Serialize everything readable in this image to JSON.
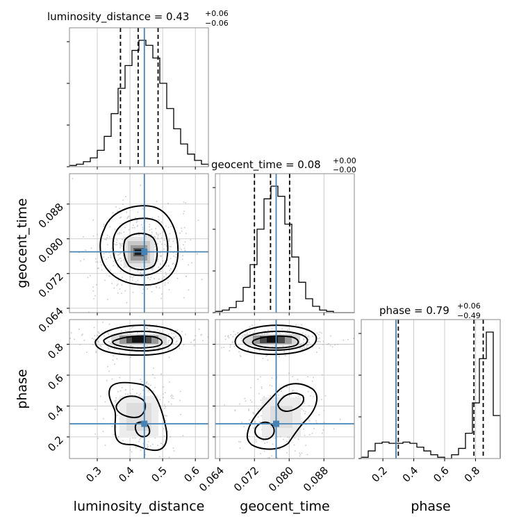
{
  "chart_data": {
    "type": "corner",
    "parameters": [
      "luminosity_distance",
      "geocent_time",
      "phase"
    ],
    "truths": {
      "luminosity_distance": 0.444,
      "geocent_time": 0.077,
      "phase": 0.285
    },
    "ranges": {
      "luminosity_distance": [
        0.215,
        0.64
      ],
      "geocent_time": [
        0.063,
        0.095
      ],
      "phase": [
        0.06,
        0.96
      ]
    },
    "titles": [
      {
        "param": "luminosity_distance",
        "prefix": "luminosity_distance = ",
        "value": "0.43",
        "plus": "+0.06",
        "minus": "−0.06"
      },
      {
        "param": "geocent_time",
        "prefix": "geocent_time = ",
        "value": "0.08",
        "plus": "+0.00",
        "minus": "−0.00"
      },
      {
        "param": "phase",
        "prefix": "phase = ",
        "value": "0.79",
        "plus": "+0.06",
        "minus": "−0.49"
      }
    ],
    "quantiles": {
      "luminosity_distance": [
        0.371,
        0.425,
        0.486
      ],
      "geocent_time": [
        0.072,
        0.0757,
        0.0801
      ],
      "phase": [
        0.3,
        0.79,
        0.85
      ]
    },
    "ticks": {
      "luminosity_distance": [
        "0.3",
        "0.4",
        "0.5",
        "0.6"
      ],
      "geocent_time": [
        "0.064",
        "0.072",
        "0.080",
        "0.088"
      ],
      "phase": [
        "0.2",
        "0.4",
        "0.6",
        "0.8"
      ]
    },
    "tick_values": {
      "luminosity_distance": [
        0.3,
        0.4,
        0.5,
        0.6
      ],
      "geocent_time": [
        0.064,
        0.072,
        0.08,
        0.088
      ],
      "phase": [
        0.2,
        0.4,
        0.6,
        0.8
      ]
    },
    "histograms": [
      {
        "param": "luminosity_distance",
        "edges_range": [
          0.215,
          0.64
        ],
        "counts": [
          0.01,
          0.02,
          0.04,
          0.07,
          0.13,
          0.24,
          0.42,
          0.62,
          0.8,
          0.92,
          1.0,
          0.96,
          0.86,
          0.66,
          0.46,
          0.3,
          0.18,
          0.1,
          0.05,
          0.02
        ]
      },
      {
        "param": "geocent_time",
        "edges_range": [
          0.063,
          0.095
        ],
        "counts": [
          0.01,
          0.02,
          0.04,
          0.09,
          0.2,
          0.38,
          0.66,
          0.9,
          1.0,
          0.92,
          0.7,
          0.44,
          0.24,
          0.11,
          0.05,
          0.02,
          0.01,
          0.0,
          0.0,
          0.0
        ]
      },
      {
        "param": "phase",
        "edges_range": [
          0.06,
          0.96
        ],
        "counts": [
          0.01,
          0.06,
          0.12,
          0.13,
          0.12,
          0.12,
          0.13,
          0.12,
          0.09,
          0.06,
          0.03,
          0.01,
          0.0,
          0.03,
          0.08,
          0.2,
          0.44,
          0.79,
          1.0,
          0.34
        ]
      }
    ],
    "xlabels": [
      "luminosity_distance",
      "geocent_time",
      "phase"
    ],
    "ylabels": [
      "geocent_time",
      "phase"
    ],
    "grid": true,
    "colors": {
      "truth": "#4682b4",
      "hist": "#000000",
      "quantile": "#000000",
      "grid": "#c0c0c0",
      "points": "#aaaaaa"
    }
  }
}
